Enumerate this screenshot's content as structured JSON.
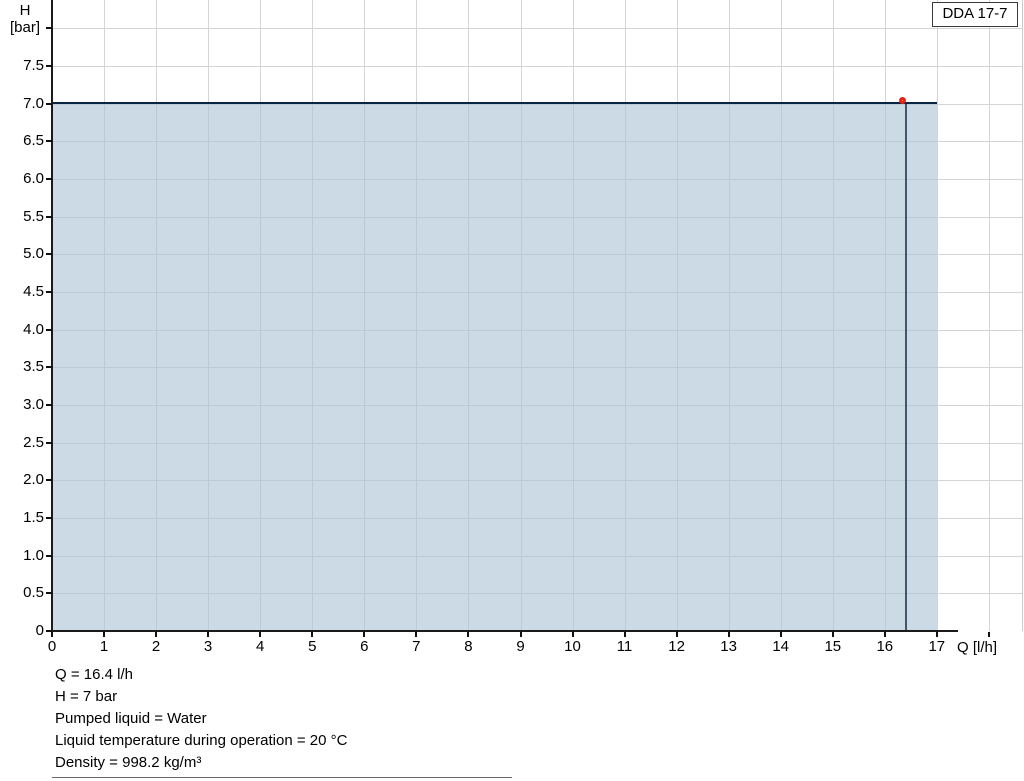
{
  "chart_data": {
    "type": "area",
    "title": "",
    "model": "DDA 17-7",
    "xlabel": "Q [l/h]",
    "ylabel_name": "H",
    "ylabel_unit": "[bar]",
    "xlim": [
      0,
      18.66
    ],
    "ylim": [
      0,
      8.38
    ],
    "grid": true,
    "x_ticks": [
      {
        "v": 0,
        "label": "0"
      },
      {
        "v": 1,
        "label": "1"
      },
      {
        "v": 2,
        "label": "2"
      },
      {
        "v": 3,
        "label": "3"
      },
      {
        "v": 4,
        "label": "4"
      },
      {
        "v": 5,
        "label": "5"
      },
      {
        "v": 6,
        "label": "6"
      },
      {
        "v": 7,
        "label": "7"
      },
      {
        "v": 8,
        "label": "8"
      },
      {
        "v": 9,
        "label": "9"
      },
      {
        "v": 10,
        "label": "10"
      },
      {
        "v": 11,
        "label": "11"
      },
      {
        "v": 12,
        "label": "12"
      },
      {
        "v": 13,
        "label": "13"
      },
      {
        "v": 14,
        "label": "14"
      },
      {
        "v": 15,
        "label": "15"
      },
      {
        "v": 16,
        "label": "16"
      },
      {
        "v": 17,
        "label": "17"
      },
      {
        "v": 18,
        "label": ""
      }
    ],
    "y_ticks": [
      {
        "v": 0,
        "label": "0"
      },
      {
        "v": 0.5,
        "label": "0.5"
      },
      {
        "v": 1,
        "label": "1.0"
      },
      {
        "v": 1.5,
        "label": "1.5"
      },
      {
        "v": 2,
        "label": "2.0"
      },
      {
        "v": 2.5,
        "label": "2.5"
      },
      {
        "v": 3,
        "label": "3.0"
      },
      {
        "v": 3.5,
        "label": "3.5"
      },
      {
        "v": 4,
        "label": "4.0"
      },
      {
        "v": 4.5,
        "label": "4.5"
      },
      {
        "v": 5,
        "label": "5.0"
      },
      {
        "v": 5.5,
        "label": "5.5"
      },
      {
        "v": 6,
        "label": "6.0"
      },
      {
        "v": 6.5,
        "label": "6.5"
      },
      {
        "v": 7,
        "label": "7.0"
      },
      {
        "v": 7.5,
        "label": "7.5"
      },
      {
        "v": 8,
        "label": ""
      }
    ],
    "series": [
      {
        "name": "DDA 17-7",
        "x": [
          0,
          17
        ],
        "y": [
          7,
          7
        ]
      }
    ],
    "operating_point": {
      "q": 16.4,
      "h": 7
    },
    "colors": {
      "curve": "#1e4f86",
      "curve_edge": "#0a2443",
      "fill": "#adc4d5",
      "grid": "#d4d4d4",
      "axis": "#000000",
      "marker_fill": "#ffe105",
      "marker_ring": "#e8211d",
      "drop_line": "#44576a"
    }
  },
  "badge": {
    "label": "DDA 17-7"
  },
  "info": {
    "lines": [
      "Q = 16.4 l/h",
      "H = 7 bar",
      "Pumped liquid = Water",
      "Liquid temperature during operation = 20 °C",
      "Density = 998.2 kg/m³"
    ]
  }
}
